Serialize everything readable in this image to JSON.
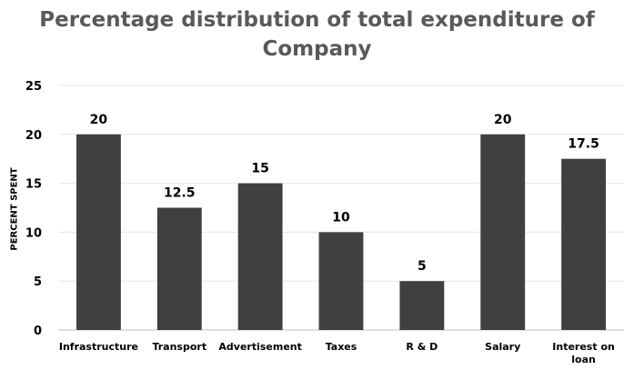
{
  "chart_data": {
    "type": "bar",
    "title": "Percentage distribution of total expenditure of Company",
    "title_lines": [
      "Percentage distribution of total expenditure of",
      "Company"
    ],
    "xlabel": "",
    "ylabel": "PERCENT SPENT",
    "categories": [
      "Infrastructure",
      "Transport",
      "Advertisement",
      "Taxes",
      "R & D",
      "Salary",
      "Interest on loan"
    ],
    "category_lines": [
      [
        "Infrastructure"
      ],
      [
        "Transport"
      ],
      [
        "Advertisement"
      ],
      [
        "Taxes"
      ],
      [
        "R & D"
      ],
      [
        "Salary"
      ],
      [
        "Interest on",
        "loan"
      ]
    ],
    "values": [
      20,
      12.5,
      15,
      10,
      5,
      20,
      17.5
    ],
    "value_labels": [
      "20",
      "12.5",
      "15",
      "10",
      "5",
      "20",
      "17.5"
    ],
    "ylim": [
      0,
      25
    ],
    "yticks": [
      0,
      5,
      10,
      15,
      20,
      25
    ],
    "grid": true,
    "legend": "none",
    "bar_color": "#404040",
    "grid_color": "#e6e6e6",
    "axis_color": "#bfbfbf"
  }
}
